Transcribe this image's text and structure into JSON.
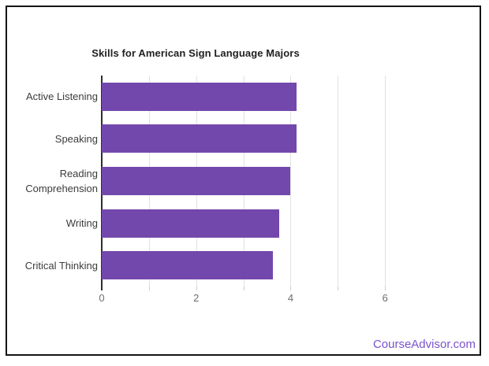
{
  "page": {
    "background": "#ffffff",
    "frame_border_color": "#141414"
  },
  "watermark": {
    "text": "CourseAdvisor.com",
    "color": "#7a52cc"
  },
  "chart_data": {
    "type": "bar",
    "orientation": "horizontal",
    "title": "Skills for American Sign Language Majors",
    "categories": [
      "Active Listening",
      "Speaking",
      "Reading Comprehension",
      "Writing",
      "Critical Thinking"
    ],
    "values": [
      4.13,
      4.13,
      4.0,
      3.75,
      3.63
    ],
    "xlabel": "",
    "ylabel": "",
    "x_ticks": [
      0,
      2,
      4,
      6
    ],
    "grid_values": [
      1,
      2,
      3,
      4,
      5,
      6
    ],
    "xlim": [
      0,
      7.6
    ],
    "grid": true,
    "legend": false,
    "bar_color": "#7348ac",
    "colors": {
      "title": "#212121",
      "category_labels": "#3c3c3c",
      "tick_labels": "#6e6e6e",
      "gridline": "#e2e2e2",
      "axis_line": "#2f2f2f"
    }
  }
}
